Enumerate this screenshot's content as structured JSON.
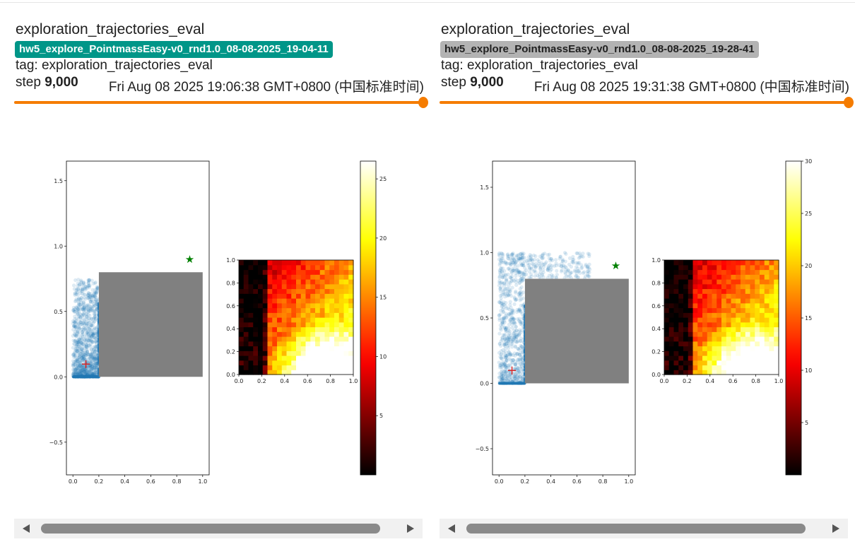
{
  "cards": [
    {
      "title": "exploration_trajectories_eval",
      "run_name": "hw5_explore_PointmassEasy-v0_rnd1.0_08-08-2025_19-04-11",
      "run_color": "#009688",
      "run_text_color": "#ffffff",
      "tag_text": "tag: exploration_trajectories_eval",
      "step_label": "step",
      "step_value": "9,000",
      "timestamp": "Fri Aug 08 2025 19:06:38 GMT+0800 (中国标准时间)",
      "slider_color": "#f57c00",
      "colorbar_ticks": [
        "5",
        "10",
        "15",
        "20",
        "25"
      ]
    },
    {
      "title": "exploration_trajectories_eval",
      "run_name": "hw5_explore_PointmassEasy-v0_rnd1.0_08-08-2025_19-28-41",
      "run_color": "#b3b3b3",
      "run_text_color": "#212121",
      "tag_text": "tag: exploration_trajectories_eval",
      "step_label": "step",
      "step_value": "9,000",
      "timestamp": "Fri Aug 08 2025 19:31:38 GMT+0800 (中国标准时间)",
      "slider_color": "#f57c00",
      "colorbar_ticks": [
        "5",
        "10",
        "15",
        "20",
        "25",
        "30"
      ]
    }
  ],
  "plot": {
    "scatter_x_ticks": [
      "0.0",
      "0.2",
      "0.4",
      "0.6",
      "0.8",
      "1.0"
    ],
    "scatter_y_ticks_card0": [
      "−0.5",
      "0.0",
      "0.5",
      "1.0",
      "1.5"
    ],
    "scatter_y_ticks_card1": [
      "−0.5",
      "0.0",
      "0.5",
      "1.0",
      "1.5"
    ],
    "heat_ticks": [
      "0.0",
      "0.2",
      "0.4",
      "0.6",
      "0.8",
      "1.0"
    ],
    "goal_marker": "★",
    "start_marker": "+"
  },
  "chart_data": [
    {
      "type": "scatter",
      "xlim": [
        -0.05,
        1.05
      ],
      "ylim": [
        -0.75,
        1.65
      ],
      "obstacle": {
        "x": [
          0.2,
          1.0
        ],
        "y": [
          0.0,
          0.8
        ]
      },
      "goal": [
        0.9,
        0.9
      ],
      "start": [
        0.1,
        0.1
      ],
      "points_region": {
        "x": [
          0.0,
          0.2
        ],
        "y": [
          0.0,
          0.75
        ]
      },
      "point_color": "#1f77b4",
      "goal_color": "#008000",
      "start_color": "#d62728"
    },
    {
      "type": "heatmap",
      "xlim": [
        0,
        1
      ],
      "ylim": [
        0,
        1
      ],
      "colorbar_range": [
        0,
        26.5
      ],
      "colormap": "hot"
    },
    {
      "type": "scatter",
      "xlim": [
        -0.05,
        1.05
      ],
      "ylim": [
        -0.7,
        1.7
      ],
      "obstacle": {
        "x": [
          0.2,
          1.0
        ],
        "y": [
          0.0,
          0.8
        ]
      },
      "goal": [
        0.9,
        0.9
      ],
      "start": [
        0.1,
        0.1
      ],
      "points_region": {
        "x": [
          0.0,
          0.7
        ],
        "y": [
          0.0,
          1.0
        ]
      },
      "point_color": "#1f77b4",
      "goal_color": "#008000",
      "start_color": "#d62728"
    },
    {
      "type": "heatmap",
      "xlim": [
        0,
        1
      ],
      "ylim": [
        0,
        1
      ],
      "colorbar_range": [
        0,
        30
      ],
      "colormap": "hot"
    }
  ]
}
